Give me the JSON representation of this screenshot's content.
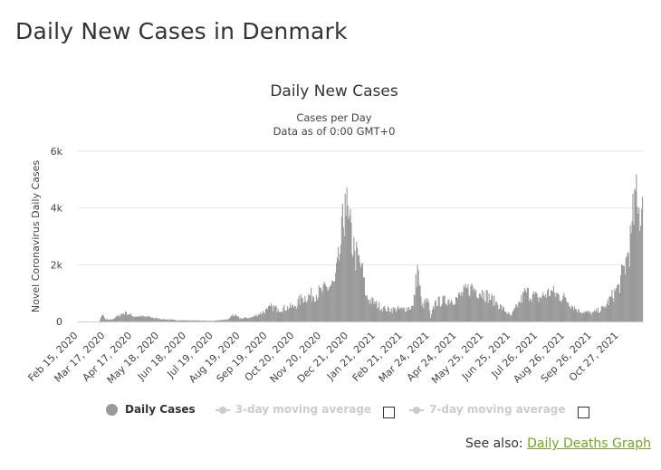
{
  "page": {
    "title": "Daily New Cases in Denmark"
  },
  "see_also": {
    "prefix": "See also:",
    "link_label": "Daily Deaths Graph"
  },
  "legend": {
    "daily_label": "Daily Cases",
    "ma3_label": "3-day moving average",
    "ma7_label": "7-day moving average",
    "ma3_checked": false,
    "ma7_checked": false
  },
  "colors": {
    "bars": "#999999",
    "grid": "#e6e6e6",
    "link": "#78a12a",
    "inactive": "#cccccc"
  },
  "chart_data": {
    "type": "bar",
    "title": "Daily New Cases",
    "subtitle": "Cases per Day",
    "subtitle2": "Data as of 0:00 GMT+0",
    "ylabel": "Novel Coronavirus Daily Cases",
    "xlabel": "",
    "ylim": [
      0,
      6000
    ],
    "yticks": [
      0,
      2000,
      4000,
      6000
    ],
    "ytick_labels": [
      "0",
      "2k",
      "4k",
      "6k"
    ],
    "xtick_labels": [
      "Feb 15, 2020",
      "Mar 17, 2020",
      "Apr 17, 2020",
      "May 18, 2020",
      "Jun 18, 2020",
      "Jul 19, 2020",
      "Aug 19, 2020",
      "Sep 19, 2020",
      "Oct 20, 2020",
      "Nov 20, 2020",
      "Dec 21, 2020",
      "Jan 21, 2021",
      "Feb 21, 2021",
      "Mar 24, 2021",
      "Apr 24, 2021",
      "May 25, 2021",
      "Jun 25, 2021",
      "Jul 26, 2021",
      "Aug 26, 2021",
      "Sep 26, 2021",
      "Oct 27, 2021"
    ],
    "x_start": "2020-02-15",
    "x_end": "2021-11-23",
    "grid": true,
    "legend_position": "bottom",
    "series": [
      {
        "name": "Daily Cases",
        "points": [
          [
            "2020-02-15",
            0
          ],
          [
            "2020-03-10",
            0
          ],
          [
            "2020-03-14",
            250
          ],
          [
            "2020-03-17",
            70
          ],
          [
            "2020-03-25",
            80
          ],
          [
            "2020-04-05",
            280
          ],
          [
            "2020-04-10",
            320
          ],
          [
            "2020-04-17",
            200
          ],
          [
            "2020-05-05",
            170
          ],
          [
            "2020-05-18",
            100
          ],
          [
            "2020-06-05",
            50
          ],
          [
            "2020-07-19",
            20
          ],
          [
            "2020-08-05",
            80
          ],
          [
            "2020-08-10",
            250
          ],
          [
            "2020-08-19",
            110
          ],
          [
            "2020-09-01",
            150
          ],
          [
            "2020-09-19",
            430
          ],
          [
            "2020-09-24",
            550
          ],
          [
            "2020-10-01",
            450
          ],
          [
            "2020-10-20",
            550
          ],
          [
            "2020-10-28",
            850
          ],
          [
            "2020-11-20",
            1100
          ],
          [
            "2020-12-05",
            1400
          ],
          [
            "2020-12-12",
            2700
          ],
          [
            "2020-12-17",
            4500
          ],
          [
            "2020-12-21",
            3600
          ],
          [
            "2020-12-28",
            2500
          ],
          [
            "2021-01-05",
            2000
          ],
          [
            "2021-01-10",
            900
          ],
          [
            "2021-01-21",
            650
          ],
          [
            "2021-02-01",
            450
          ],
          [
            "2021-02-21",
            450
          ],
          [
            "2021-03-05",
            550
          ],
          [
            "2021-03-10",
            2000
          ],
          [
            "2021-03-15",
            550
          ],
          [
            "2021-03-22",
            800
          ],
          [
            "2021-03-25",
            120
          ],
          [
            "2021-03-30",
            700
          ],
          [
            "2021-04-24",
            850
          ],
          [
            "2021-05-10",
            1250
          ],
          [
            "2021-05-25",
            1050
          ],
          [
            "2021-06-08",
            700
          ],
          [
            "2021-06-25",
            200
          ],
          [
            "2021-07-05",
            700
          ],
          [
            "2021-07-12",
            1100
          ],
          [
            "2021-07-26",
            850
          ],
          [
            "2021-08-10",
            1100
          ],
          [
            "2021-08-26",
            850
          ],
          [
            "2021-09-10",
            400
          ],
          [
            "2021-09-26",
            300
          ],
          [
            "2021-10-10",
            500
          ],
          [
            "2021-10-27",
            1300
          ],
          [
            "2021-11-05",
            2300
          ],
          [
            "2021-11-10",
            3100
          ],
          [
            "2021-11-15",
            4600
          ],
          [
            "2021-11-18",
            3800
          ],
          [
            "2021-11-23",
            4400
          ]
        ]
      }
    ]
  }
}
